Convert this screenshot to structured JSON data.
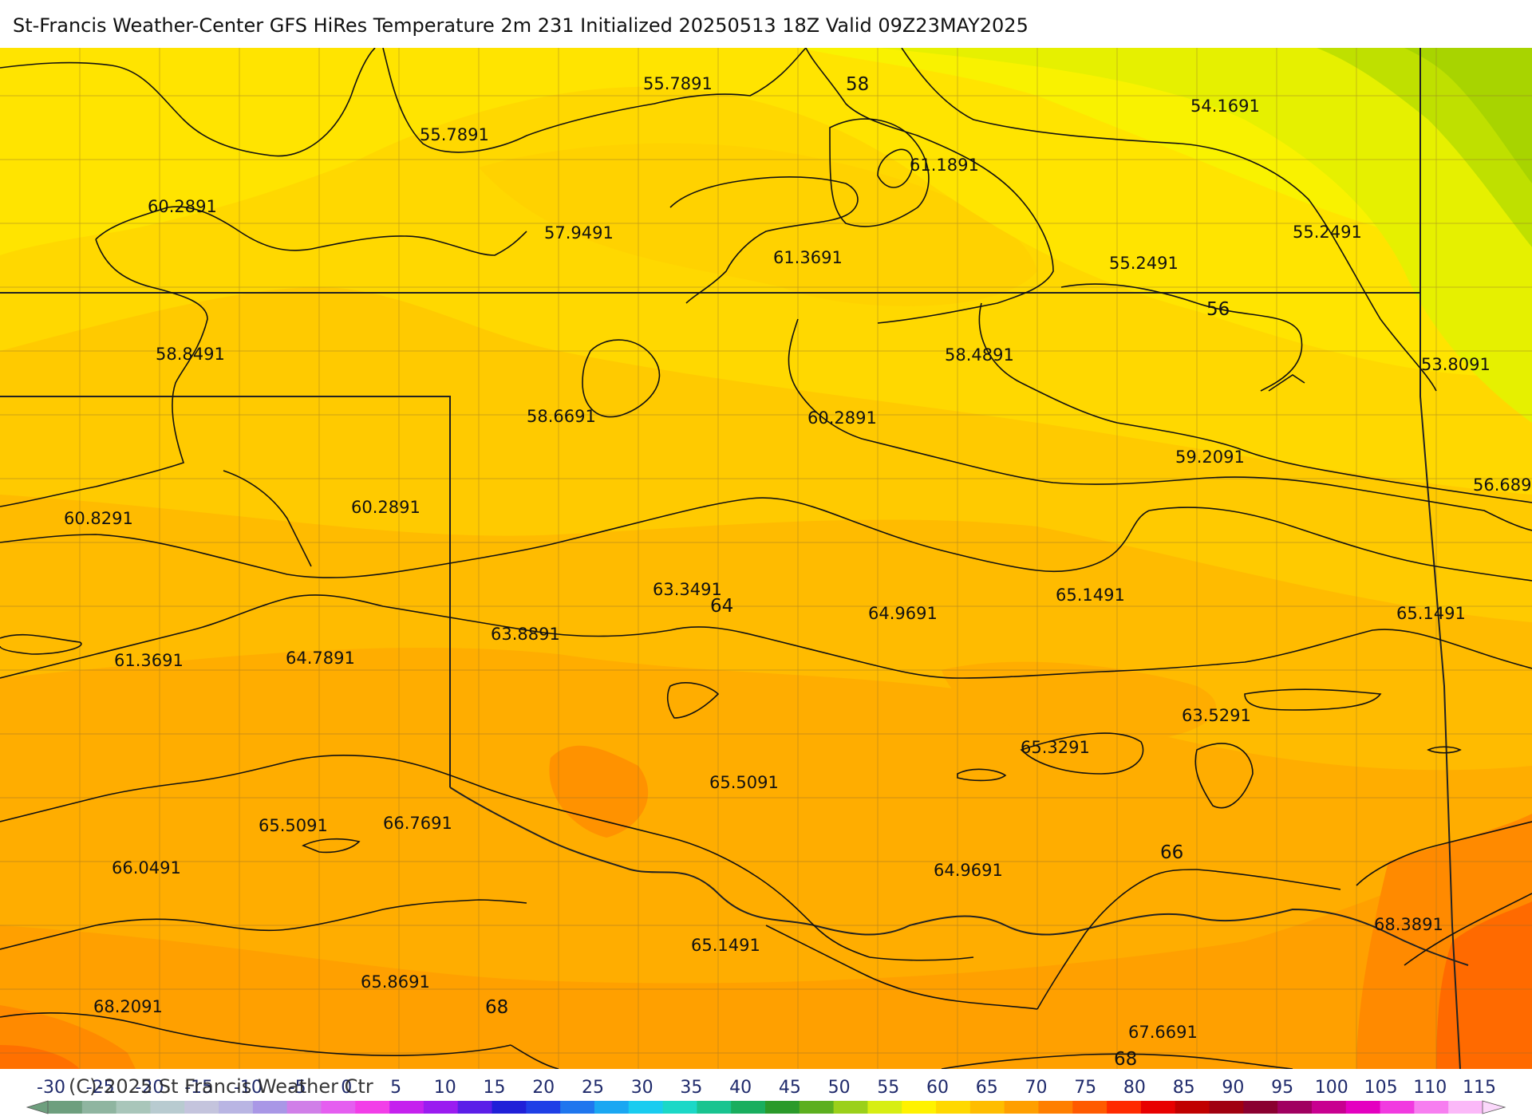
{
  "title": "St-Francis Weather-Center GFS HiRes Temperature 2m  231 Initialized 20250513 18Z Valid 09Z23MAY2025",
  "copyright": "(C)-2025 St Francis Weather Ctr",
  "colorbar": {
    "ticks": [
      "-30",
      "-25",
      "-20",
      "-15",
      "-10",
      "-5",
      "0",
      "5",
      "10",
      "15",
      "20",
      "25",
      "30",
      "35",
      "40",
      "45",
      "50",
      "55",
      "60",
      "65",
      "70",
      "75",
      "80",
      "85",
      "90",
      "95",
      "100",
      "105",
      "110",
      "115"
    ],
    "colors": [
      "#6e9f7e",
      "#8fb5a0",
      "#a9c6ba",
      "#b8cbd0",
      "#c4c4dd",
      "#b9b5e3",
      "#a997e6",
      "#d07fe8",
      "#e55ef0",
      "#f23ee8",
      "#c521ee",
      "#9a1cf0",
      "#5b1ee8",
      "#2020d8",
      "#1f3fe6",
      "#1f76ee",
      "#1aa7f2",
      "#19ccf0",
      "#1bd8c7",
      "#19c490",
      "#19ae5e",
      "#2a9a2a",
      "#5caf1f",
      "#9bd01a",
      "#d7ee12",
      "#fff200",
      "#ffd800",
      "#ffbd00",
      "#ff9f00",
      "#ff7f00",
      "#ff5a00",
      "#ff2a00",
      "#e80000",
      "#c00000",
      "#a00010",
      "#8a0030",
      "#a00060",
      "#c80090",
      "#e400c0",
      "#f13ae0",
      "#f77ef0",
      "#fbb8f8"
    ]
  },
  "contour_labels": [
    {
      "text": "55.7891",
      "kind": "minor"
    },
    {
      "text": "58",
      "kind": "major"
    },
    {
      "text": "55.7891",
      "kind": "minor"
    },
    {
      "text": "54.1691",
      "kind": "minor"
    },
    {
      "text": "61.1891",
      "kind": "minor"
    },
    {
      "text": "60.2891",
      "kind": "minor"
    },
    {
      "text": "57.9491",
      "kind": "minor"
    },
    {
      "text": "61.3691",
      "kind": "minor"
    },
    {
      "text": "55.2491",
      "kind": "minor"
    },
    {
      "text": "55.2491",
      "kind": "minor"
    },
    {
      "text": "56",
      "kind": "major"
    },
    {
      "text": "58.8491",
      "kind": "minor"
    },
    {
      "text": "58.4891",
      "kind": "minor"
    },
    {
      "text": "53.8091",
      "kind": "minor"
    },
    {
      "text": "58.6691",
      "kind": "minor"
    },
    {
      "text": "60.2891",
      "kind": "minor"
    },
    {
      "text": "59.2091",
      "kind": "minor"
    },
    {
      "text": "56.689",
      "kind": "minor"
    },
    {
      "text": "60.8291",
      "kind": "minor"
    },
    {
      "text": "60.2891",
      "kind": "minor"
    },
    {
      "text": "63.3491",
      "kind": "minor"
    },
    {
      "text": "64",
      "kind": "major"
    },
    {
      "text": "64.9691",
      "kind": "minor"
    },
    {
      "text": "65.1491",
      "kind": "minor"
    },
    {
      "text": "65.1491",
      "kind": "minor"
    },
    {
      "text": "61.3691",
      "kind": "minor"
    },
    {
      "text": "64.7891",
      "kind": "minor"
    },
    {
      "text": "63.8891",
      "kind": "minor"
    },
    {
      "text": "63.5291",
      "kind": "minor"
    },
    {
      "text": "65.3291",
      "kind": "minor"
    },
    {
      "text": "65.5091",
      "kind": "minor"
    },
    {
      "text": "65.5091",
      "kind": "minor"
    },
    {
      "text": "66.7691",
      "kind": "minor"
    },
    {
      "text": "66.0491",
      "kind": "minor"
    },
    {
      "text": "64.9691",
      "kind": "minor"
    },
    {
      "text": "66",
      "kind": "major"
    },
    {
      "text": "68.3891",
      "kind": "minor"
    },
    {
      "text": "65.1491",
      "kind": "minor"
    },
    {
      "text": "65.8691",
      "kind": "minor"
    },
    {
      "text": "68.2091",
      "kind": "minor"
    },
    {
      "text": "68",
      "kind": "major"
    },
    {
      "text": "67.6691",
      "kind": "minor"
    },
    {
      "text": "68",
      "kind": "major"
    }
  ]
}
